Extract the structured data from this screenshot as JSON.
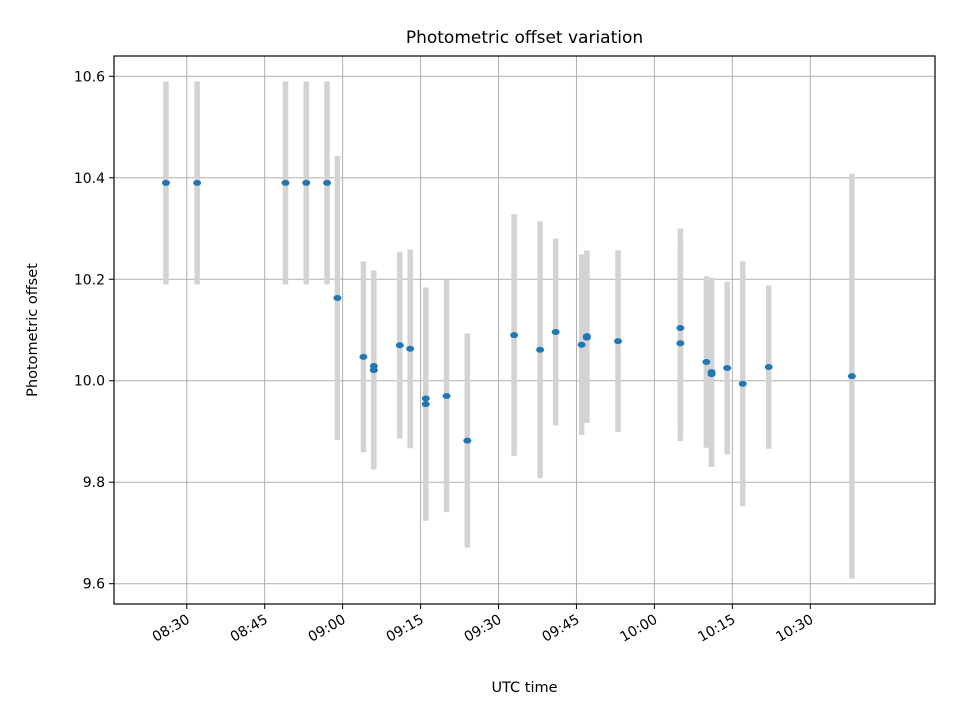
{
  "chart_data": {
    "type": "scatter",
    "title": "Photometric offset variation",
    "xlabel": "UTC time",
    "ylabel": "Photometric offset",
    "xlim": [
      "08:16",
      "10:54"
    ],
    "ylim": [
      9.56,
      10.64
    ],
    "xticks": [
      "08:30",
      "08:45",
      "09:00",
      "09:15",
      "09:30",
      "09:45",
      "10:00",
      "10:15",
      "10:30"
    ],
    "yticks": [
      "9.6",
      "9.8",
      "10.0",
      "10.2",
      "10.4",
      "10.6"
    ],
    "grid": true,
    "colors": {
      "marker": "#1f77b4",
      "errorbar": "#d3d3d3",
      "grid": "#b0b0b0"
    },
    "points": [
      {
        "x": "08:26",
        "y": 10.39,
        "err": 0.2
      },
      {
        "x": "08:32",
        "y": 10.39,
        "err": 0.2
      },
      {
        "x": "08:49",
        "y": 10.39,
        "err": 0.2
      },
      {
        "x": "08:53",
        "y": 10.39,
        "err": 0.2
      },
      {
        "x": "08:57",
        "y": 10.39,
        "err": 0.2
      },
      {
        "x": "08:59",
        "y": 10.163,
        "err": 0.28
      },
      {
        "x": "09:04",
        "y": 10.047,
        "err": 0.188
      },
      {
        "x": "09:06",
        "y": 10.021,
        "err": 0.196
      },
      {
        "x": "09:06",
        "y": 10.029,
        "err": 0.151
      },
      {
        "x": "09:11",
        "y": 10.07,
        "err": 0.184
      },
      {
        "x": "09:13",
        "y": 10.063,
        "err": 0.196
      },
      {
        "x": "09:16",
        "y": 9.965,
        "err": 0.218
      },
      {
        "x": "09:16",
        "y": 9.954,
        "err": 0.23
      },
      {
        "x": "09:20",
        "y": 9.97,
        "err": 0.229
      },
      {
        "x": "09:24",
        "y": 9.882,
        "err": 0.211
      },
      {
        "x": "09:33",
        "y": 10.09,
        "err": 0.238
      },
      {
        "x": "09:38",
        "y": 10.061,
        "err": 0.253
      },
      {
        "x": "09:41",
        "y": 10.096,
        "err": 0.184
      },
      {
        "x": "09:46",
        "y": 10.071,
        "err": 0.178
      },
      {
        "x": "09:47",
        "y": 10.085,
        "err": 0.168
      },
      {
        "x": "09:47",
        "y": 10.088,
        "err": 0.169
      },
      {
        "x": "09:53",
        "y": 10.078,
        "err": 0.179
      },
      {
        "x": "10:05",
        "y": 10.104,
        "err": 0.196
      },
      {
        "x": "10:05",
        "y": 10.074,
        "err": 0.193
      },
      {
        "x": "10:10",
        "y": 10.037,
        "err": 0.169
      },
      {
        "x": "10:11",
        "y": 10.017,
        "err": 0.186
      },
      {
        "x": "10:11",
        "y": 10.013,
        "err": 0.183
      },
      {
        "x": "10:14",
        "y": 10.025,
        "err": 0.17
      },
      {
        "x": "10:17",
        "y": 9.994,
        "err": 0.241
      },
      {
        "x": "10:22",
        "y": 10.027,
        "err": 0.161
      },
      {
        "x": "10:38",
        "y": 10.009,
        "err": 0.399
      }
    ]
  }
}
